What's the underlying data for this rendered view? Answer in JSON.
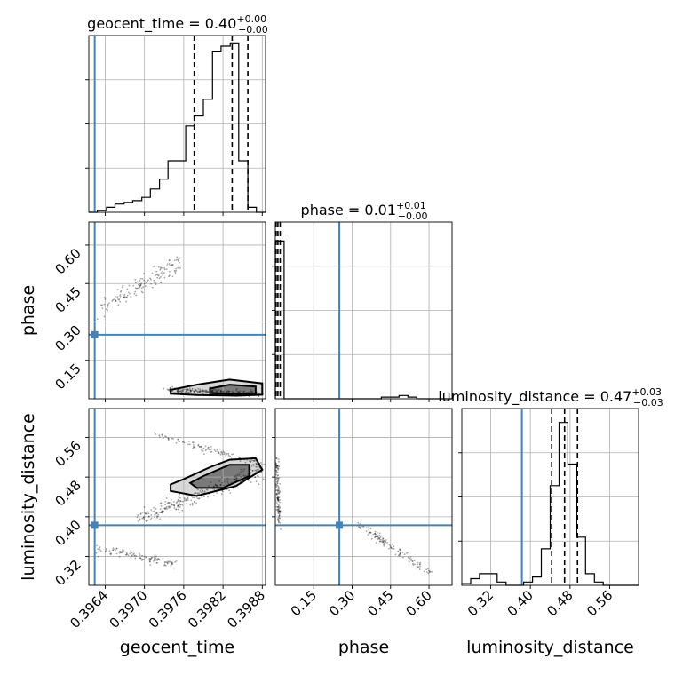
{
  "chart_data": {
    "type": "corner",
    "parameters": [
      "geocent_time",
      "phase",
      "luminosity_distance"
    ],
    "panel_titles": [
      {
        "name": "geocent_time",
        "median": "0.40",
        "plus": "+0.00",
        "minus": "−0.00"
      },
      {
        "name": "phase",
        "median": "0.01",
        "plus": "+0.01",
        "minus": "−0.00"
      },
      {
        "name": "luminosity_distance",
        "median": "0.47",
        "plus": "+0.03",
        "minus": "−0.03"
      }
    ],
    "axis_labels": {
      "x": [
        "geocent_time",
        "phase",
        "luminosity_distance"
      ],
      "y": [
        "phase",
        "luminosity_distance"
      ]
    },
    "ranges": {
      "geocent_time": [
        0.39615,
        0.39885
      ],
      "phase": [
        0.0,
        0.69
      ],
      "luminosity_distance": [
        0.262,
        0.618
      ]
    },
    "ticks": {
      "geocent_time": [
        "0.3964",
        "0.3970",
        "0.3976",
        "0.3982",
        "0.3988"
      ],
      "phase": [
        "0.15",
        "0.30",
        "0.45",
        "0.60"
      ],
      "luminosity_distance": [
        "0.32",
        "0.40",
        "0.48",
        "0.56"
      ]
    },
    "truths": {
      "geocent_time": 0.39624,
      "phase": 0.25,
      "luminosity_distance": 0.383
    },
    "quantiles": {
      "geocent_time": [
        0.39776,
        0.39834,
        0.39858
      ],
      "phase": [
        0.003,
        0.01,
        0.019
      ],
      "luminosity_distance": [
        0.443,
        0.469,
        0.495
      ]
    },
    "histograms": {
      "geocent_time": {
        "edges": [
          0.39615,
          0.39628,
          0.39642,
          0.39655,
          0.39669,
          0.39682,
          0.39696,
          0.39709,
          0.39723,
          0.39736,
          0.3975,
          0.39763,
          0.39777,
          0.3979,
          0.39804,
          0.39817,
          0.39831,
          0.39844,
          0.39858,
          0.39871,
          0.39885
        ],
        "counts": [
          0.0,
          0.01,
          0.03,
          0.05,
          0.06,
          0.07,
          0.09,
          0.14,
          0.2,
          0.31,
          0.31,
          0.52,
          0.58,
          0.68,
          0.97,
          1.0,
          1.02,
          0.31,
          0.03,
          0.0
        ]
      },
      "phase": {
        "edges": [
          0.0,
          0.0345,
          0.069,
          0.1035,
          0.138,
          0.1725,
          0.207,
          0.2415,
          0.276,
          0.3105,
          0.345,
          0.3795,
          0.414,
          0.4485,
          0.483,
          0.5175,
          0.552,
          0.5865,
          0.621,
          0.6555,
          0.69
        ],
        "counts": [
          0.95,
          0.0,
          0.0,
          0.0,
          0.0,
          0.0,
          0.0,
          0.0,
          0.0,
          0.0,
          0.0,
          0.0,
          0.01,
          0.01,
          0.02,
          0.01,
          0.0,
          0.0,
          0.0,
          0.0
        ]
      },
      "luminosity_distance": {
        "edges": [
          0.262,
          0.2798,
          0.2976,
          0.3154,
          0.3332,
          0.351,
          0.3688,
          0.3866,
          0.4044,
          0.4222,
          0.44,
          0.4578,
          0.4756,
          0.4934,
          0.5112,
          0.529,
          0.5468,
          0.5646,
          0.5824,
          0.6002,
          0.618
        ],
        "counts": [
          0.01,
          0.04,
          0.07,
          0.07,
          0.02,
          0.0,
          0.0,
          0.02,
          0.05,
          0.22,
          0.6,
          0.98,
          0.73,
          0.29,
          0.07,
          0.02,
          0.0,
          0.0,
          0.0,
          0.0
        ]
      }
    },
    "sample_clusters": [
      {
        "pair": [
          "geocent_time",
          "phase"
        ],
        "from": [
          0.39633,
          0.36
        ],
        "to": [
          0.39755,
          0.53
        ],
        "spread": [
          4e-05,
          0.02
        ],
        "n": 150
      },
      {
        "pair": [
          "geocent_time",
          "phase"
        ],
        "from": [
          0.39735,
          0.035
        ],
        "to": [
          0.39875,
          0.018
        ],
        "spread": [
          4e-05,
          0.005
        ],
        "n": 260
      },
      {
        "pair": [
          "geocent_time",
          "luminosity_distance"
        ],
        "from": [
          0.3972,
          0.565
        ],
        "to": [
          0.3988,
          0.505
        ],
        "spread": [
          3e-05,
          0.004
        ],
        "n": 120
      },
      {
        "pair": [
          "geocent_time",
          "luminosity_distance"
        ],
        "from": [
          0.3969,
          0.395
        ],
        "to": [
          0.3988,
          0.495
        ],
        "spread": [
          4e-05,
          0.008
        ],
        "n": 280
      },
      {
        "pair": [
          "geocent_time",
          "luminosity_distance"
        ],
        "from": [
          0.3963,
          0.335
        ],
        "to": [
          0.3975,
          0.305
        ],
        "spread": [
          3e-05,
          0.004
        ],
        "n": 110
      },
      {
        "pair": [
          "phase",
          "luminosity_distance"
        ],
        "from": [
          0.003,
          0.51
        ],
        "to": [
          0.015,
          0.4
        ],
        "spread": [
          0.004,
          0.015
        ],
        "n": 140
      },
      {
        "pair": [
          "phase",
          "luminosity_distance"
        ],
        "from": [
          0.32,
          0.385
        ],
        "to": [
          0.61,
          0.285
        ],
        "spread": [
          0.006,
          0.004
        ],
        "n": 130
      }
    ],
    "contours": [
      {
        "pair": [
          "geocent_time",
          "phase"
        ],
        "levels": [
          [
            [
              0.3974,
              0.02
            ],
            [
              0.3978,
              0.015
            ],
            [
              0.3984,
              0.012
            ],
            [
              0.3988,
              0.016
            ],
            [
              0.3988,
              0.06
            ],
            [
              0.3983,
              0.075
            ],
            [
              0.3978,
              0.055
            ],
            [
              0.3974,
              0.035
            ]
          ],
          [
            [
              0.398,
              0.022
            ],
            [
              0.3984,
              0.018
            ],
            [
              0.3987,
              0.022
            ],
            [
              0.3987,
              0.048
            ],
            [
              0.3983,
              0.055
            ],
            [
              0.398,
              0.04
            ]
          ]
        ]
      },
      {
        "pair": [
          "geocent_time",
          "luminosity_distance"
        ],
        "levels": [
          [
            [
              0.3974,
              0.452
            ],
            [
              0.3978,
              0.442
            ],
            [
              0.3984,
              0.462
            ],
            [
              0.3988,
              0.495
            ],
            [
              0.3987,
              0.518
            ],
            [
              0.3983,
              0.515
            ],
            [
              0.398,
              0.5
            ],
            [
              0.3976,
              0.476
            ],
            [
              0.3974,
              0.465
            ]
          ],
          [
            [
              0.3978,
              0.458
            ],
            [
              0.3982,
              0.458
            ],
            [
              0.3986,
              0.482
            ],
            [
              0.3986,
              0.505
            ],
            [
              0.3983,
              0.505
            ],
            [
              0.3979,
              0.482
            ],
            [
              0.3977,
              0.468
            ]
          ]
        ]
      }
    ]
  }
}
